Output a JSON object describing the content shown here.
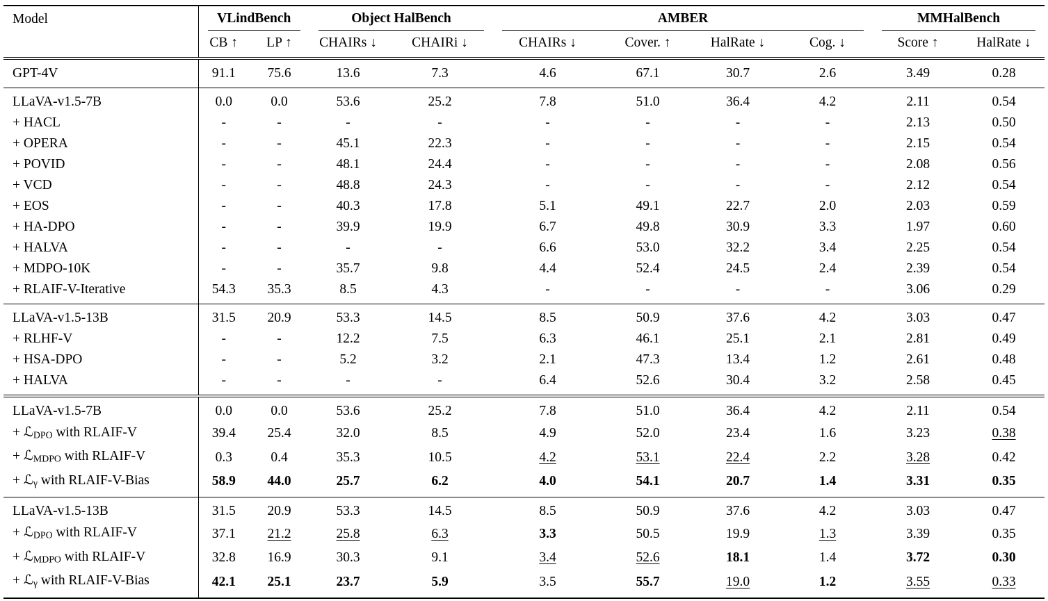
{
  "page": {
    "background": "#ffffff",
    "text_color": "#000000"
  },
  "table": {
    "model_header": "Model",
    "groups": [
      {
        "label": "VLindBench",
        "cols": 2
      },
      {
        "label": "Object HalBench",
        "cols": 2
      },
      {
        "label": "AMBER",
        "cols": 4
      },
      {
        "label": "MMHalBench",
        "cols": 2
      }
    ],
    "columns": [
      "CB ↑",
      "LP ↑",
      "CHAIRs ↓",
      "CHAIRi ↓",
      "CHAIRs ↓",
      "Cover. ↑",
      "HalRate ↓",
      "Cog. ↓",
      "Score ↑",
      "HalRate ↓"
    ],
    "sections": [
      {
        "divider": "none",
        "rows": [
          {
            "model": [
              {
                "t": "GPT-4V"
              }
            ],
            "cells": [
              "91.1",
              "75.6",
              "13.6",
              "7.3",
              "4.6",
              "67.1",
              "30.7",
              "2.6",
              "3.49",
              "0.28"
            ]
          }
        ]
      },
      {
        "divider": "single",
        "rows": [
          {
            "model": [
              {
                "t": "LLaVA-v1.5-7B"
              }
            ],
            "cells": [
              "0.0",
              "0.0",
              "53.6",
              "25.2",
              "7.8",
              "51.0",
              "36.4",
              "4.2",
              "2.11",
              "0.54"
            ]
          },
          {
            "model": [
              {
                "t": "+ HACL"
              }
            ],
            "cells": [
              "-",
              "-",
              "-",
              "-",
              "-",
              "-",
              "-",
              "-",
              "2.13",
              "0.50"
            ]
          },
          {
            "model": [
              {
                "t": "+ OPERA"
              }
            ],
            "cells": [
              "-",
              "-",
              "45.1",
              "22.3",
              "-",
              "-",
              "-",
              "-",
              "2.15",
              "0.54"
            ]
          },
          {
            "model": [
              {
                "t": "+ POVID"
              }
            ],
            "cells": [
              "-",
              "-",
              "48.1",
              "24.4",
              "-",
              "-",
              "-",
              "-",
              "2.08",
              "0.56"
            ]
          },
          {
            "model": [
              {
                "t": "+ VCD"
              }
            ],
            "cells": [
              "-",
              "-",
              "48.8",
              "24.3",
              "-",
              "-",
              "-",
              "-",
              "2.12",
              "0.54"
            ]
          },
          {
            "model": [
              {
                "t": "+ EOS"
              }
            ],
            "cells": [
              "-",
              "-",
              "40.3",
              "17.8",
              "5.1",
              "49.1",
              "22.7",
              "2.0",
              "2.03",
              "0.59"
            ]
          },
          {
            "model": [
              {
                "t": "+ HA-DPO"
              }
            ],
            "cells": [
              "-",
              "-",
              "39.9",
              "19.9",
              "6.7",
              "49.8",
              "30.9",
              "3.3",
              "1.97",
              "0.60"
            ]
          },
          {
            "model": [
              {
                "t": "+ HALVA"
              }
            ],
            "cells": [
              "-",
              "-",
              "-",
              "-",
              "6.6",
              "53.0",
              "32.2",
              "3.4",
              "2.25",
              "0.54"
            ]
          },
          {
            "model": [
              {
                "t": "+ MDPO-10K"
              }
            ],
            "cells": [
              "-",
              "-",
              "35.7",
              "9.8",
              "4.4",
              "52.4",
              "24.5",
              "2.4",
              "2.39",
              "0.54"
            ]
          },
          {
            "model": [
              {
                "t": "+ RLAIF-V-Iterative"
              }
            ],
            "cells": [
              "54.3",
              "35.3",
              "8.5",
              "4.3",
              "-",
              "-",
              "-",
              "-",
              "3.06",
              "0.29"
            ]
          }
        ]
      },
      {
        "divider": "single",
        "rows": [
          {
            "model": [
              {
                "t": "LLaVA-v1.5-13B"
              }
            ],
            "cells": [
              "31.5",
              "20.9",
              "53.3",
              "14.5",
              "8.5",
              "50.9",
              "37.6",
              "4.2",
              "3.03",
              "0.47"
            ]
          },
          {
            "model": [
              {
                "t": "+ RLHF-V"
              }
            ],
            "cells": [
              "-",
              "-",
              "12.2",
              "7.5",
              "6.3",
              "46.1",
              "25.1",
              "2.1",
              "2.81",
              "0.49"
            ]
          },
          {
            "model": [
              {
                "t": "+ HSA-DPO"
              }
            ],
            "cells": [
              "-",
              "-",
              "5.2",
              "3.2",
              "2.1",
              "47.3",
              "13.4",
              "1.2",
              "2.61",
              "0.48"
            ]
          },
          {
            "model": [
              {
                "t": "+ HALVA"
              }
            ],
            "cells": [
              "-",
              "-",
              "-",
              "-",
              "6.4",
              "52.6",
              "30.4",
              "3.2",
              "2.58",
              "0.45"
            ]
          }
        ]
      },
      {
        "divider": "double",
        "rows": [
          {
            "model": [
              {
                "t": "LLaVA-v1.5-7B"
              }
            ],
            "cells": [
              "0.0",
              "0.0",
              "53.6",
              "25.2",
              "7.8",
              "51.0",
              "36.4",
              "4.2",
              "2.11",
              "0.54"
            ]
          },
          {
            "model": [
              {
                "t": "+ "
              },
              {
                "t": "ℒ",
                "style": "cal"
              },
              {
                "t": "DPO",
                "style": "sub"
              },
              {
                "t": " with RLAIF-V"
              }
            ],
            "cells": [
              "39.4",
              "25.4",
              "32.0",
              "8.5",
              "4.9",
              "52.0",
              "23.4",
              "1.6",
              "3.23",
              {
                "v": "0.38",
                "s": "u"
              }
            ]
          },
          {
            "model": [
              {
                "t": "+ "
              },
              {
                "t": "ℒ",
                "style": "cal"
              },
              {
                "t": "MDPO",
                "style": "sub"
              },
              {
                "t": " with RLAIF-V"
              }
            ],
            "cells": [
              "0.3",
              "0.4",
              "35.3",
              "10.5",
              {
                "v": "4.2",
                "s": "u"
              },
              {
                "v": "53.1",
                "s": "u"
              },
              {
                "v": "22.4",
                "s": "u"
              },
              "2.2",
              {
                "v": "3.28",
                "s": "u"
              },
              "0.42"
            ]
          },
          {
            "model": [
              {
                "t": "+ "
              },
              {
                "t": "ℒ",
                "style": "cal"
              },
              {
                "t": "γ",
                "style": "sub"
              },
              {
                "t": " with RLAIF-V-Bias"
              }
            ],
            "cells": [
              {
                "v": "58.9",
                "s": "b"
              },
              {
                "v": "44.0",
                "s": "b"
              },
              {
                "v": "25.7",
                "s": "b"
              },
              {
                "v": "6.2",
                "s": "b"
              },
              {
                "v": "4.0",
                "s": "b"
              },
              {
                "v": "54.1",
                "s": "b"
              },
              {
                "v": "20.7",
                "s": "b"
              },
              {
                "v": "1.4",
                "s": "b"
              },
              {
                "v": "3.31",
                "s": "b"
              },
              {
                "v": "0.35",
                "s": "b"
              }
            ]
          }
        ]
      },
      {
        "divider": "single",
        "rows": [
          {
            "model": [
              {
                "t": "LLaVA-v1.5-13B"
              }
            ],
            "cells": [
              "31.5",
              "20.9",
              "53.3",
              "14.5",
              "8.5",
              "50.9",
              "37.6",
              "4.2",
              "3.03",
              "0.47"
            ]
          },
          {
            "model": [
              {
                "t": "+ "
              },
              {
                "t": "ℒ",
                "style": "cal"
              },
              {
                "t": "DPO",
                "style": "sub"
              },
              {
                "t": " with RLAIF-V"
              }
            ],
            "cells": [
              "37.1",
              {
                "v": "21.2",
                "s": "u"
              },
              {
                "v": "25.8",
                "s": "u"
              },
              {
                "v": "6.3",
                "s": "u"
              },
              {
                "v": "3.3",
                "s": "b"
              },
              "50.5",
              "19.9",
              {
                "v": "1.3",
                "s": "u"
              },
              "3.39",
              "0.35"
            ]
          },
          {
            "model": [
              {
                "t": "+ "
              },
              {
                "t": "ℒ",
                "style": "cal"
              },
              {
                "t": "MDPO",
                "style": "sub"
              },
              {
                "t": " with RLAIF-V"
              }
            ],
            "cells": [
              "32.8",
              "16.9",
              "30.3",
              "9.1",
              {
                "v": "3.4",
                "s": "u"
              },
              {
                "v": "52.6",
                "s": "u"
              },
              {
                "v": "18.1",
                "s": "b"
              },
              "1.4",
              {
                "v": "3.72",
                "s": "b"
              },
              {
                "v": "0.30",
                "s": "b"
              }
            ]
          },
          {
            "model": [
              {
                "t": "+ "
              },
              {
                "t": "ℒ",
                "style": "cal"
              },
              {
                "t": "γ",
                "style": "sub"
              },
              {
                "t": " with RLAIF-V-Bias"
              }
            ],
            "cells": [
              {
                "v": "42.1",
                "s": "b"
              },
              {
                "v": "25.1",
                "s": "b"
              },
              {
                "v": "23.7",
                "s": "b"
              },
              {
                "v": "5.9",
                "s": "b"
              },
              "3.5",
              {
                "v": "55.7",
                "s": "b"
              },
              {
                "v": "19.0",
                "s": "u"
              },
              {
                "v": "1.2",
                "s": "b"
              },
              {
                "v": "3.55",
                "s": "u"
              },
              {
                "v": "0.33",
                "s": "u"
              }
            ]
          }
        ]
      }
    ]
  }
}
